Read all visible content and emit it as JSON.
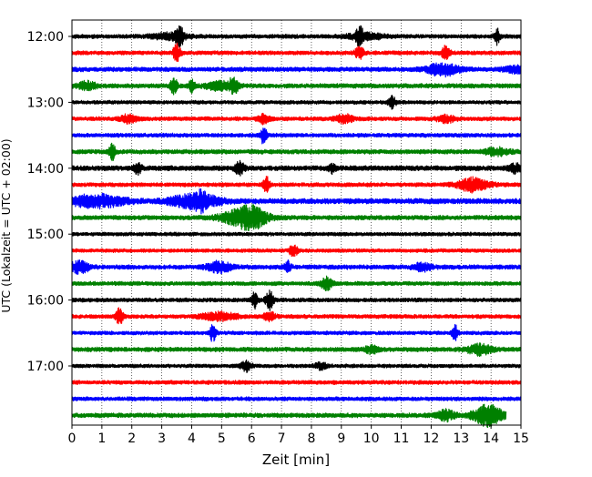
{
  "chart_data": {
    "type": "line",
    "title": "",
    "xlabel": "Zeit  [min]",
    "ylabel": "UTC (Lokalzeit = UTC + 02:00)",
    "xlim": [
      0,
      15
    ],
    "xticks": [
      "0",
      "1",
      "2",
      "3",
      "4",
      "5",
      "6",
      "7",
      "8",
      "9",
      "10",
      "11",
      "12",
      "13",
      "14",
      "15"
    ],
    "yticks": [
      {
        "label": "12:00",
        "row": 0
      },
      {
        "label": "13:00",
        "row": 4
      },
      {
        "label": "14:00",
        "row": 8
      },
      {
        "label": "15:00",
        "row": 12
      },
      {
        "label": "16:00",
        "row": 16
      },
      {
        "label": "17:00",
        "row": 20
      }
    ],
    "grid": "vertical dotted at each minute",
    "trace_colors": [
      "#000000",
      "#ff0000",
      "#0000ff",
      "#008000"
    ],
    "trace_interval_min": 15,
    "traces": [
      {
        "start": "12:00",
        "color": "#000000",
        "noise": 0.22,
        "events": [
          [
            3.6,
            1.0,
            0.15
          ],
          [
            9.6,
            1.1,
            0.12
          ],
          [
            14.2,
            0.9,
            0.1
          ],
          [
            3.2,
            0.35,
            0.6
          ],
          [
            9.8,
            0.35,
            0.6
          ]
        ]
      },
      {
        "start": "12:15",
        "color": "#ff0000",
        "noise": 0.22,
        "events": [
          [
            3.5,
            1.0,
            0.12
          ],
          [
            9.6,
            0.7,
            0.15
          ],
          [
            12.5,
            0.8,
            0.15
          ]
        ]
      },
      {
        "start": "12:30",
        "color": "#0000ff",
        "noise": 0.25,
        "events": [
          [
            12.4,
            0.75,
            0.5
          ],
          [
            14.8,
            0.4,
            0.4
          ]
        ]
      },
      {
        "start": "12:45",
        "color": "#008000",
        "noise": 0.25,
        "events": [
          [
            0.5,
            0.45,
            0.3
          ],
          [
            3.4,
            0.9,
            0.12
          ],
          [
            4.0,
            0.7,
            0.1
          ],
          [
            5.4,
            1.1,
            0.15
          ],
          [
            4.9,
            0.5,
            0.4
          ]
        ]
      },
      {
        "start": "13:00",
        "color": "#000000",
        "noise": 0.2,
        "events": [
          [
            10.7,
            0.8,
            0.12
          ]
        ]
      },
      {
        "start": "13:15",
        "color": "#ff0000",
        "noise": 0.22,
        "events": [
          [
            1.9,
            0.45,
            0.3
          ],
          [
            6.4,
            0.5,
            0.2
          ],
          [
            9.1,
            0.45,
            0.3
          ],
          [
            12.5,
            0.4,
            0.3
          ]
        ]
      },
      {
        "start": "13:30",
        "color": "#0000ff",
        "noise": 0.22,
        "events": [
          [
            6.4,
            1.0,
            0.1
          ]
        ]
      },
      {
        "start": "13:45",
        "color": "#008000",
        "noise": 0.25,
        "events": [
          [
            1.35,
            0.9,
            0.1
          ],
          [
            14.2,
            0.4,
            0.4
          ]
        ]
      },
      {
        "start": "14:00",
        "color": "#000000",
        "noise": 0.28,
        "events": [
          [
            2.2,
            0.7,
            0.12
          ],
          [
            5.6,
            0.7,
            0.15
          ],
          [
            8.7,
            0.5,
            0.12
          ],
          [
            14.8,
            0.5,
            0.2
          ]
        ]
      },
      {
        "start": "14:15",
        "color": "#ff0000",
        "noise": 0.22,
        "events": [
          [
            6.5,
            0.9,
            0.1
          ],
          [
            13.4,
            0.8,
            0.5
          ]
        ]
      },
      {
        "start": "14:30",
        "color": "#0000ff",
        "noise": 0.3,
        "events": [
          [
            0.8,
            0.7,
            0.9
          ],
          [
            4.1,
            0.8,
            0.8
          ],
          [
            4.3,
            0.5,
            0.2
          ]
        ]
      },
      {
        "start": "14:45",
        "color": "#008000",
        "noise": 0.25,
        "events": [
          [
            5.7,
            1.0,
            0.7
          ],
          [
            6.1,
            0.6,
            0.4
          ]
        ]
      },
      {
        "start": "15:00",
        "color": "#000000",
        "noise": 0.2,
        "events": []
      },
      {
        "start": "15:15",
        "color": "#ff0000",
        "noise": 0.2,
        "events": [
          [
            7.4,
            0.6,
            0.15
          ]
        ]
      },
      {
        "start": "15:30",
        "color": "#0000ff",
        "noise": 0.25,
        "events": [
          [
            0.25,
            0.7,
            0.3
          ],
          [
            4.9,
            0.6,
            0.4
          ],
          [
            7.2,
            0.8,
            0.1
          ],
          [
            11.7,
            0.4,
            0.3
          ]
        ]
      },
      {
        "start": "15:45",
        "color": "#008000",
        "noise": 0.22,
        "events": [
          [
            8.5,
            0.7,
            0.2
          ]
        ]
      },
      {
        "start": "16:00",
        "color": "#000000",
        "noise": 0.22,
        "events": [
          [
            6.1,
            0.9,
            0.1
          ],
          [
            6.6,
            1.2,
            0.12
          ]
        ]
      },
      {
        "start": "16:15",
        "color": "#ff0000",
        "noise": 0.22,
        "events": [
          [
            1.6,
            1.0,
            0.12
          ],
          [
            4.9,
            0.45,
            0.6
          ],
          [
            6.6,
            0.5,
            0.2
          ]
        ]
      },
      {
        "start": "16:30",
        "color": "#0000ff",
        "noise": 0.2,
        "events": [
          [
            4.7,
            1.0,
            0.1
          ],
          [
            12.8,
            0.9,
            0.1
          ]
        ]
      },
      {
        "start": "16:45",
        "color": "#008000",
        "noise": 0.25,
        "events": [
          [
            10.0,
            0.45,
            0.2
          ],
          [
            13.6,
            0.6,
            0.4
          ]
        ]
      },
      {
        "start": "17:00",
        "color": "#000000",
        "noise": 0.2,
        "events": [
          [
            5.8,
            0.6,
            0.2
          ],
          [
            8.3,
            0.4,
            0.2
          ]
        ]
      },
      {
        "start": "17:15",
        "color": "#ff0000",
        "noise": 0.22,
        "events": []
      },
      {
        "start": "17:30",
        "color": "#0000ff",
        "noise": 0.22,
        "events": []
      },
      {
        "start": "17:45",
        "color": "#008000",
        "noise": 0.25,
        "events": [
          [
            12.5,
            0.6,
            0.3
          ],
          [
            13.9,
            1.2,
            0.5
          ]
        ],
        "end_min": 14.5
      }
    ]
  }
}
